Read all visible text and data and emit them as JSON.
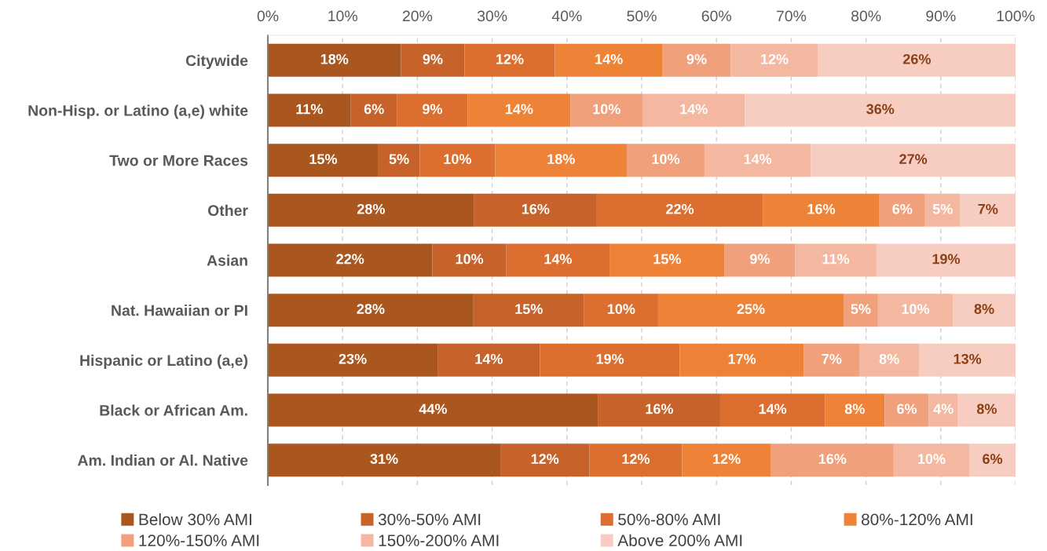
{
  "chart_data": {
    "type": "bar",
    "orientation": "horizontal",
    "stacked": true,
    "categories": [
      "Citywide",
      "Non-Hisp. or Latino (a,e) white",
      "Two or More Races",
      "Other",
      "Asian",
      "Nat. Hawaiian or PI",
      "Hispanic or Latino (a,e)",
      "Black or African Am.",
      "Am. Indian or Al. Native"
    ],
    "series": [
      {
        "name": "Below 30% AMI",
        "color": "#a9561f",
        "values": [
          17.8,
          11.1,
          14.8,
          27.6,
          22.0,
          27.5,
          22.7,
          44.2,
          31.1
        ],
        "value_labels": [
          "18%",
          "11%",
          "15%",
          "28%",
          "22%",
          "28%",
          "23%",
          "44%",
          "31%"
        ]
      },
      {
        "name": "30%-50% AMI",
        "color": "#c6622a",
        "values": [
          8.5,
          6.2,
          5.5,
          16.4,
          9.9,
          14.8,
          13.7,
          16.3,
          11.9
        ],
        "value_labels": [
          "9%",
          "6%",
          "5%",
          "16%",
          "10%",
          "15%",
          "14%",
          "16%",
          "12%"
        ]
      },
      {
        "name": "50%-80% AMI",
        "color": "#dc6f30",
        "values": [
          12.1,
          9.4,
          10.1,
          22.2,
          13.8,
          9.9,
          18.7,
          14.0,
          12.4
        ],
        "value_labels": [
          "12%",
          "9%",
          "10%",
          "22%",
          "14%",
          "10%",
          "19%",
          "14%",
          "12%"
        ]
      },
      {
        "name": "80%-120% AMI",
        "color": "#ee8236",
        "values": [
          14.4,
          13.8,
          17.6,
          15.6,
          15.4,
          24.8,
          16.6,
          8.0,
          11.9
        ],
        "value_labels": [
          "14%",
          "14%",
          "18%",
          "16%",
          "15%",
          "25%",
          "17%",
          "8%",
          "12%"
        ]
      },
      {
        "name": "120%-150% AMI",
        "color": "#f0a07a",
        "values": [
          9.1,
          9.6,
          10.4,
          6.1,
          9.4,
          4.6,
          7.4,
          5.9,
          16.4
        ],
        "value_labels": [
          "9%",
          "10%",
          "10%",
          "6%",
          "9%",
          "5%",
          "7%",
          "6%",
          "16%"
        ]
      },
      {
        "name": "150%-200% AMI",
        "color": "#f4b7a0",
        "values": [
          11.7,
          13.7,
          14.2,
          4.7,
          10.9,
          10.0,
          8.0,
          3.9,
          10.1
        ],
        "value_labels": [
          "12%",
          "14%",
          "14%",
          "5%",
          "11%",
          "10%",
          "8%",
          "4%",
          "10%"
        ]
      },
      {
        "name": "Above 200% AMI",
        "color": "#f8cdc1",
        "values": [
          26.4,
          36.2,
          27.4,
          7.4,
          18.6,
          8.4,
          12.9,
          7.7,
          6.2
        ],
        "value_labels": [
          "26%",
          "36%",
          "27%",
          "7%",
          "19%",
          "8%",
          "13%",
          "8%",
          "6%"
        ]
      }
    ],
    "xlim": [
      0,
      100
    ],
    "xticks": [
      {
        "value": 0,
        "label": "0%"
      },
      {
        "value": 10,
        "label": "10%"
      },
      {
        "value": 20,
        "label": "20%"
      },
      {
        "value": 30,
        "label": "30%"
      },
      {
        "value": 40,
        "label": "40%"
      },
      {
        "value": 50,
        "label": "50%"
      },
      {
        "value": 60,
        "label": "60%"
      },
      {
        "value": 70,
        "label": "70%"
      },
      {
        "value": 80,
        "label": "80%"
      },
      {
        "value": 90,
        "label": "90%"
      },
      {
        "value": 100,
        "label": "100%"
      }
    ],
    "grid": "x",
    "legend": "bottom"
  }
}
